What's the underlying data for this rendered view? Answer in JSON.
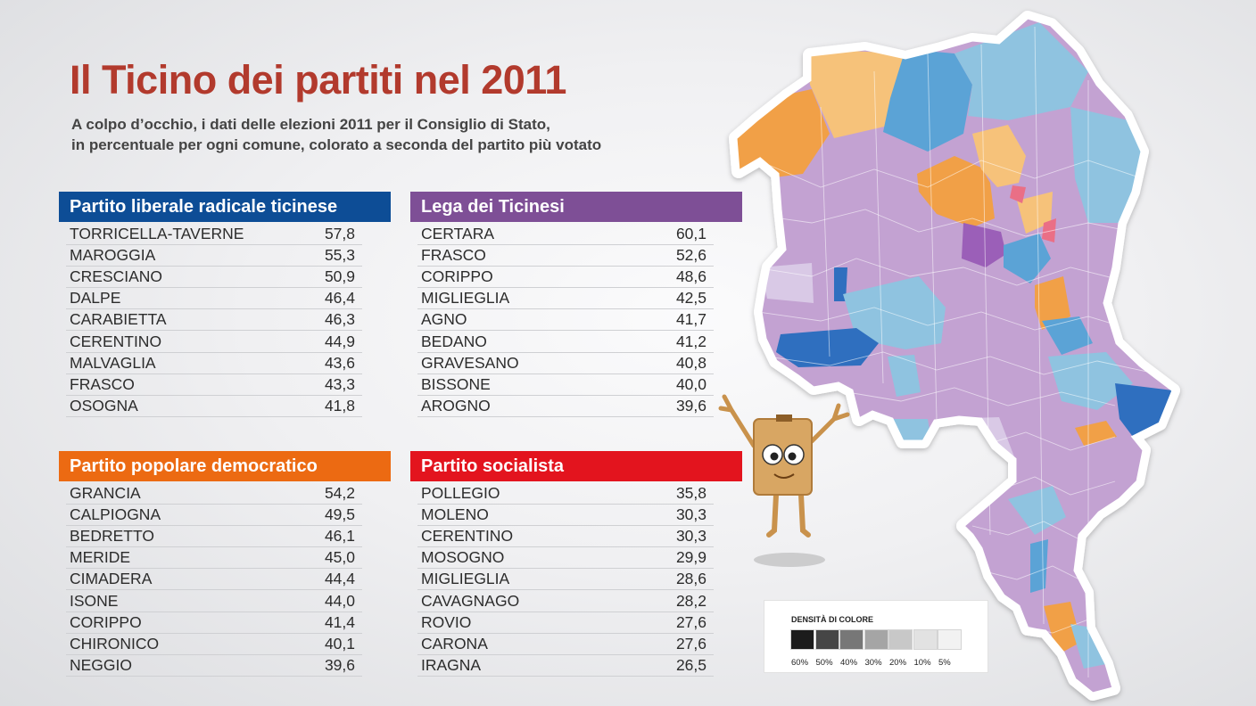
{
  "title": "Il Ticino dei partiti nel 2011",
  "subtitle_line1": "A colpo d’occhio, i dati delle elezioni 2011 per il Consiglio di Stato,",
  "subtitle_line2": "in percentuale per ogni comune, colorato a seconda del partito più votato",
  "chart_data": {
    "type": "table",
    "tables": [
      {
        "party": "Partito liberale radicale ticinese",
        "color": "#0d4d96",
        "rows": [
          {
            "comune": "TORRICELLA-TAVERNE",
            "value": "57,8"
          },
          {
            "comune": "MAROGGIA",
            "value": "55,3"
          },
          {
            "comune": "CRESCIANO",
            "value": "50,9"
          },
          {
            "comune": "DALPE",
            "value": "46,4"
          },
          {
            "comune": "CARABIETTA",
            "value": "46,3"
          },
          {
            "comune": "CERENTINO",
            "value": "44,9"
          },
          {
            "comune": "MALVAGLIA",
            "value": "43,6"
          },
          {
            "comune": "FRASCO",
            "value": "43,3"
          },
          {
            "comune": "OSOGNA",
            "value": "41,8"
          }
        ]
      },
      {
        "party": "Lega dei Ticinesi",
        "color": "#7e4f96",
        "rows": [
          {
            "comune": "CERTARA",
            "value": "60,1"
          },
          {
            "comune": "FRASCO",
            "value": "52,6"
          },
          {
            "comune": "CORIPPO",
            "value": "48,6"
          },
          {
            "comune": "MIGLIEGLIA",
            "value": "42,5"
          },
          {
            "comune": "AGNO",
            "value": "41,7"
          },
          {
            "comune": "BEDANO",
            "value": "41,2"
          },
          {
            "comune": "GRAVESANO",
            "value": "40,8"
          },
          {
            "comune": "BISSONE",
            "value": "40,0"
          },
          {
            "comune": "AROGNO",
            "value": "39,6"
          }
        ]
      },
      {
        "party": "Partito popolare democratico",
        "color": "#ec6a12",
        "rows": [
          {
            "comune": "GRANCIA",
            "value": "54,2"
          },
          {
            "comune": "CALPIOGNA",
            "value": "49,5"
          },
          {
            "comune": "BEDRETTO",
            "value": "46,1"
          },
          {
            "comune": "MERIDE",
            "value": "45,0"
          },
          {
            "comune": "CIMADERA",
            "value": "44,4"
          },
          {
            "comune": "ISONE",
            "value": "44,0"
          },
          {
            "comune": "CORIPPO",
            "value": "41,4"
          },
          {
            "comune": "CHIRONICO",
            "value": "40,1"
          },
          {
            "comune": "NEGGIO",
            "value": "39,6"
          }
        ]
      },
      {
        "party": "Partito socialista",
        "color": "#e3141e",
        "rows": [
          {
            "comune": "POLLEGIO",
            "value": "35,8"
          },
          {
            "comune": "MOLENO",
            "value": "30,3"
          },
          {
            "comune": "CERENTINO",
            "value": "30,3"
          },
          {
            "comune": "MOSOGNO",
            "value": "29,9"
          },
          {
            "comune": "MIGLIEGLIA",
            "value": "28,6"
          },
          {
            "comune": "CAVAGNAGO",
            "value": "28,2"
          },
          {
            "comune": "ROVIO",
            "value": "27,6"
          },
          {
            "comune": "CARONA",
            "value": "27,6"
          },
          {
            "comune": "IRAGNA",
            "value": "26,5"
          }
        ]
      }
    ]
  },
  "legend": {
    "title": "DENSITÀ DI COLORE",
    "items": [
      {
        "label": "60%",
        "color": "#1c1c1c"
      },
      {
        "label": "50%",
        "color": "#464646"
      },
      {
        "label": "40%",
        "color": "#777777"
      },
      {
        "label": "30%",
        "color": "#a5a5a5"
      },
      {
        "label": "20%",
        "color": "#c8c8c8"
      },
      {
        "label": "10%",
        "color": "#e2e2e2"
      },
      {
        "label": "5%",
        "color": "#f2f2f2"
      }
    ]
  },
  "map": {
    "colors": {
      "lega_light": "#d9c9e6",
      "lega_mid": "#c3a2d2",
      "lega_dark": "#9b5fb8",
      "plr_light": "#8fc3e0",
      "plr_mid": "#5ba3d6",
      "plr_dark": "#2f6fbf",
      "ppd_light": "#f6c27a",
      "ppd_mid": "#f1a047",
      "ps": "#ea6f86"
    }
  }
}
